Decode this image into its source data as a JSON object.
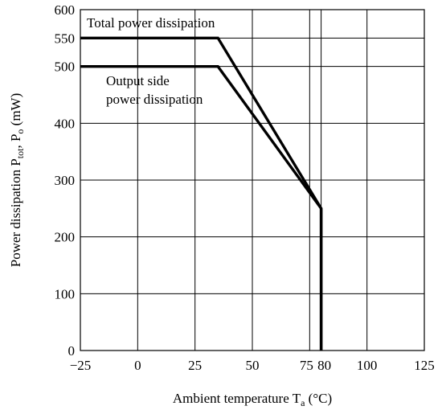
{
  "chart_data": {
    "type": "line",
    "xlabel": "Ambient temperature T",
    "xlabel_sub": "a",
    "xlabel_unit": " (°C)",
    "ylabel": "Power dissipation P",
    "ylabel_sub1": "tot",
    "ylabel_mid": ", P",
    "ylabel_sub2": "o",
    "ylabel_unit": " (mW)",
    "xlim": [
      -25,
      125
    ],
    "ylim": [
      0,
      600
    ],
    "x_ticks": [
      -25,
      0,
      25,
      50,
      75,
      80,
      100,
      125
    ],
    "x_tick_labels": [
      "−25",
      "0",
      "25",
      "50",
      "75",
      "80",
      "100",
      "125"
    ],
    "y_ticks": [
      0,
      100,
      200,
      300,
      400,
      500,
      550,
      600
    ],
    "y_tick_labels": [
      "0",
      "100",
      "200",
      "300",
      "400",
      "500",
      "550",
      "600"
    ],
    "grid": true,
    "series": [
      {
        "name": "Total power dissipation",
        "points": [
          [
            -25,
            550
          ],
          [
            35,
            550
          ],
          [
            80,
            250
          ],
          [
            80,
            0
          ]
        ]
      },
      {
        "name": "Output side power dissipation",
        "points": [
          [
            -25,
            500
          ],
          [
            35,
            500
          ],
          [
            80,
            250
          ],
          [
            80,
            0
          ]
        ]
      }
    ],
    "annotations": {
      "total": "Total power dissipation",
      "output_line1": "Output side",
      "output_line2": "power dissipation"
    }
  }
}
